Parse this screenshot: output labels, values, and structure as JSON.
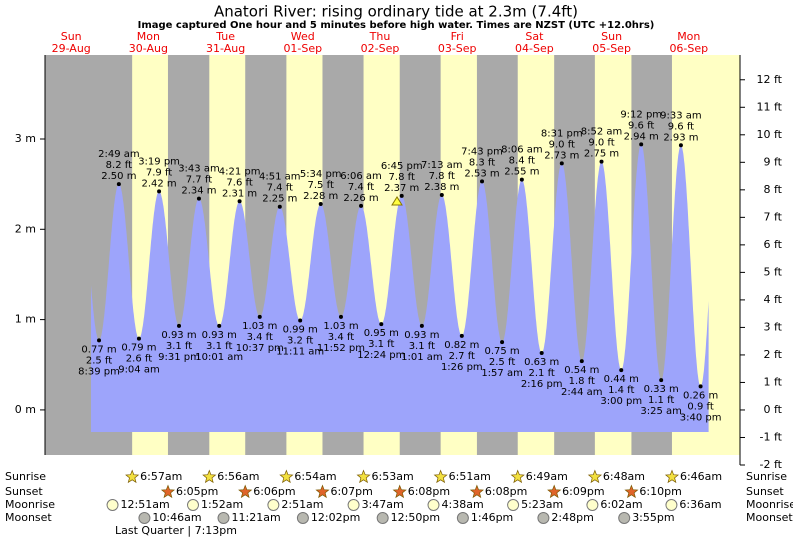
{
  "chart_data": {
    "type": "tide",
    "title": "Anatori River: rising  ordinary tide at 2.3m (7.4ft)",
    "subtitle": "Image captured One hour and 5 minutes before high water. Times are NZST (UTC +12.0hrs)",
    "days": {
      "weekdays": [
        "Sun",
        "Mon",
        "Tue",
        "Wed",
        "Thu",
        "Fri",
        "Sat",
        "Sun",
        "Mon"
      ],
      "dates": [
        "29-Aug",
        "30-Aug",
        "31-Aug",
        "01-Sep",
        "02-Sep",
        "03-Sep",
        "04-Sep",
        "05-Sep",
        "06-Sep"
      ]
    },
    "ylim": [
      -0.61,
      3.93
    ],
    "yticks": [
      {
        "value": 0,
        "label": "0 m"
      },
      {
        "value": 1,
        "label": "1 m"
      },
      {
        "value": 2,
        "label": "2 m"
      },
      {
        "value": 3,
        "label": "3 m"
      }
    ],
    "y2lim": [
      -2,
      12.9
    ],
    "y2ticks": [
      {
        "value": -2,
        "label": "-2 ft"
      },
      {
        "value": -1,
        "label": "-1 ft"
      },
      {
        "value": 0,
        "label": "0 ft"
      },
      {
        "value": 1,
        "label": "1 ft"
      },
      {
        "value": 2,
        "label": "2 ft"
      },
      {
        "value": 3,
        "label": "3 ft"
      },
      {
        "value": 4,
        "label": "4 ft"
      },
      {
        "value": 5,
        "label": "5 ft"
      },
      {
        "value": 6,
        "label": "6 ft"
      },
      {
        "value": 7,
        "label": "7 ft"
      },
      {
        "value": 8,
        "label": "8 ft"
      },
      {
        "value": 9,
        "label": "9 ft"
      },
      {
        "value": 10,
        "label": "10 ft"
      },
      {
        "value": 11,
        "label": "11 ft"
      },
      {
        "value": 12,
        "label": "12 ft"
      }
    ],
    "color": "#9da4fb",
    "extremes": {
      "times": [
        "8:39 pm",
        "2:49 am",
        "9:04 am",
        "3:19 pm",
        "9:31 pm",
        "3:43 am",
        "10:01 am",
        "4:21 pm",
        "10:37 pm",
        "4:51 am",
        "11:11 am",
        "5:34 pm",
        "11:52 pm",
        "6:06 am",
        "12:24 pm",
        "6:45 pm",
        "1:01 am",
        "7:13 am",
        "1:26 pm",
        "7:43 pm",
        "1:57 am",
        "8:06 am",
        "2:16 pm",
        "8:31 pm",
        "2:44 am",
        "8:52 am",
        "3:00 pm",
        "9:12 pm",
        "3:25 am",
        "9:33 am",
        "3:40 pm"
      ],
      "values": [
        0.77,
        2.5,
        0.79,
        2.42,
        0.93,
        2.34,
        0.93,
        2.31,
        1.03,
        2.25,
        0.99,
        2.28,
        1.03,
        2.26,
        0.95,
        2.37,
        0.93,
        2.38,
        0.82,
        2.53,
        0.75,
        2.55,
        0.63,
        2.73,
        0.54,
        2.75,
        0.44,
        2.94,
        0.33,
        2.93,
        0.26
      ],
      "value_labels": [
        "0.77 m",
        "2.50 m",
        "0.79 m",
        "2.42 m",
        "0.93 m",
        "2.34 m",
        "0.93 m",
        "2.31 m",
        "1.03 m",
        "2.25 m",
        "0.99 m",
        "2.28 m",
        "1.03 m",
        "2.26 m",
        "0.95 m",
        "2.37 m",
        "0.93 m",
        "2.38 m",
        "0.82 m",
        "2.53 m",
        "0.75 m",
        "2.55 m",
        "0.63 m",
        "2.73 m",
        "0.54 m",
        "2.75 m",
        "0.44 m",
        "2.94 m",
        "0.33 m",
        "2.93 m",
        "0.26 m"
      ],
      "ft_labels": [
        "2.5 ft",
        "8.2 ft",
        "2.6 ft",
        "7.9 ft",
        "3.1 ft",
        "7.7 ft",
        "3.1 ft",
        "7.6 ft",
        "3.4 ft",
        "7.4 ft",
        "3.2 ft",
        "7.5 ft",
        "3.4 ft",
        "7.4 ft",
        "3.1 ft",
        "7.8 ft",
        "3.1 ft",
        "7.8 ft",
        "2.7 ft",
        "8.3 ft",
        "2.5 ft",
        "8.4 ft",
        "2.1 ft",
        "9.0 ft",
        "1.8 ft",
        "9.0 ft",
        "1.4 ft",
        "9.6 ft",
        "1.1 ft",
        "9.6 ft",
        "0.9 ft"
      ]
    },
    "almanac": {
      "labels": [
        "Sunrise",
        "Sunset",
        "Moonrise",
        "Moonset"
      ],
      "sunrise": [
        null,
        "6:57am",
        "6:56am",
        "6:54am",
        "6:53am",
        "6:51am",
        "6:49am",
        "6:48am",
        "6:46am"
      ],
      "sunset": [
        null,
        "6:05pm",
        "6:06pm",
        "6:07pm",
        "6:08pm",
        "6:08pm",
        "6:09pm",
        "6:10pm",
        null
      ],
      "moonrise": [
        null,
        "12:51am",
        "1:52am",
        "2:51am",
        "3:47am",
        "4:38am",
        "5:23am",
        "6:02am",
        "6:36am"
      ],
      "moonset": [
        null,
        "10:46am",
        "11:21am",
        "12:02pm",
        "12:50pm",
        "1:46pm",
        "2:48pm",
        "3:55pm",
        null
      ],
      "moon_phase": "Last Quarter | 7:13pm"
    }
  }
}
